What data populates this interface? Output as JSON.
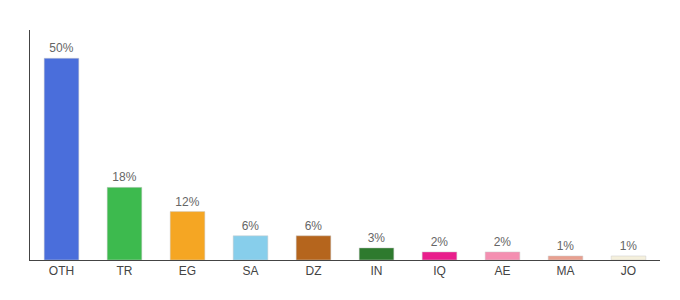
{
  "chart_data": {
    "type": "bar",
    "categories": [
      "OTH",
      "TR",
      "EG",
      "SA",
      "DZ",
      "IN",
      "IQ",
      "AE",
      "MA",
      "JO"
    ],
    "values": [
      50,
      18,
      12,
      6,
      6,
      3,
      2,
      2,
      1,
      1
    ],
    "value_labels": [
      "50%",
      "18%",
      "12%",
      "6%",
      "6%",
      "3%",
      "2%",
      "2%",
      "1%",
      "1%"
    ],
    "data_labels": true,
    "colors": [
      "#4a6edb",
      "#3dba4e",
      "#f5a623",
      "#87ceeb",
      "#b5651d",
      "#2e7a2e",
      "#e91e8c",
      "#f48fb1",
      "#e8a090",
      "#f5f0dc"
    ],
    "ylim": [
      0,
      57
    ],
    "tick_labels": "x",
    "grid": false
  }
}
